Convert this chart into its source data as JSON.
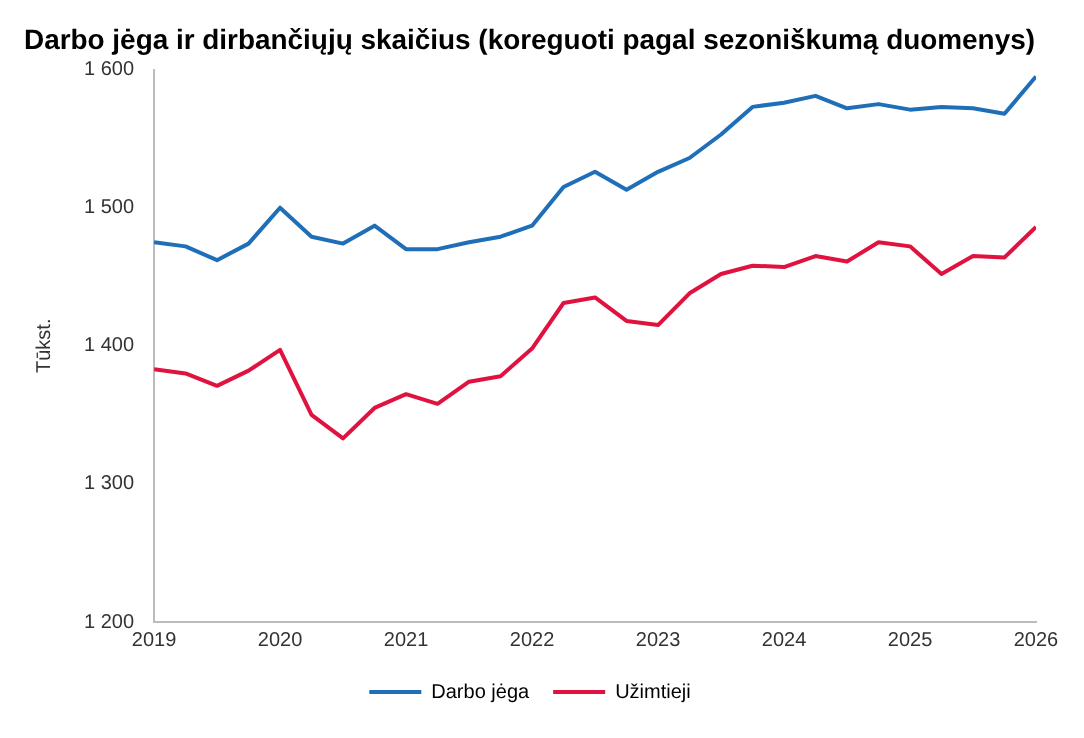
{
  "chart_data": {
    "type": "line",
    "title": "Darbo jėga ir dirbančiųjų skaičius (koreguoti pagal sezoniškumą duomenys)",
    "ylabel": "Tūkst.",
    "x": [
      2019,
      2019.25,
      2019.5,
      2019.75,
      2020,
      2020.25,
      2020.5,
      2020.75,
      2021,
      2021.25,
      2021.5,
      2021.75,
      2022,
      2022.25,
      2022.5,
      2022.75,
      2023,
      2023.25,
      2023.5,
      2023.75,
      2024,
      2024.25,
      2024.5,
      2024.75,
      2025,
      2025.25,
      2025.5,
      2025.75,
      2026
    ],
    "series": [
      {
        "name": "Darbo jėga",
        "color": "#1f6fb8",
        "values": [
          1475,
          1472,
          1462,
          1474,
          1500,
          1479,
          1474,
          1487,
          1470,
          1470,
          1475,
          1479,
          1487,
          1515,
          1526,
          1513,
          1526,
          1536,
          1553,
          1573,
          1576,
          1581,
          1572,
          1575,
          1571,
          1573,
          1572,
          1568,
          1595
        ]
      },
      {
        "name": "Užimtieji",
        "color": "#e0123f",
        "values": [
          1383,
          1380,
          1371,
          1382,
          1397,
          1350,
          1333,
          1355,
          1365,
          1358,
          1374,
          1378,
          1398,
          1431,
          1435,
          1418,
          1415,
          1438,
          1452,
          1458,
          1457,
          1465,
          1461,
          1475,
          1472,
          1452,
          1465,
          1464,
          1486
        ]
      }
    ],
    "xlim": [
      2019,
      2026
    ],
    "xticks": [
      2019,
      2020,
      2021,
      2022,
      2023,
      2024,
      2025,
      2026
    ],
    "ylim": [
      1200,
      1600
    ],
    "yticks": [
      {
        "value": 1200,
        "label": "1 200"
      },
      {
        "value": 1300,
        "label": "1 300"
      },
      {
        "value": 1400,
        "label": "1 400"
      },
      {
        "value": 1500,
        "label": "1 500"
      },
      {
        "value": 1600,
        "label": "1 600"
      }
    ],
    "grid": false,
    "legend": "bottom",
    "marker": "none",
    "line_style": "solid"
  }
}
